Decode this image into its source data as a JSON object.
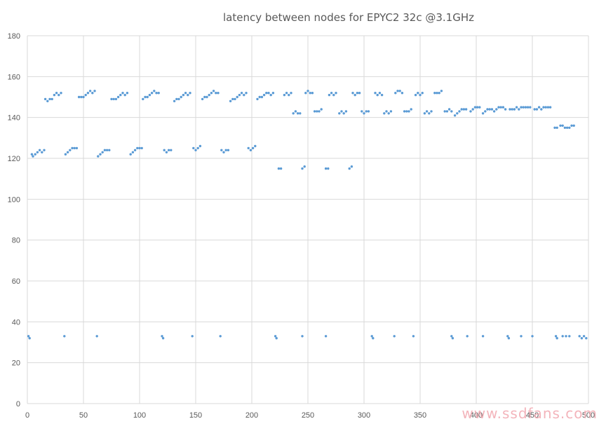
{
  "chart_data": {
    "type": "scatter",
    "title": "latency between nodes for EPYC2 32c @3.1GHz",
    "xlabel": "",
    "ylabel": "",
    "xlim": [
      0,
      500
    ],
    "ylim": [
      0,
      180
    ],
    "xticks": [
      0,
      50,
      100,
      150,
      200,
      250,
      300,
      350,
      400,
      450,
      500
    ],
    "yticks": [
      0,
      20,
      40,
      60,
      80,
      100,
      120,
      140,
      160,
      180
    ],
    "grid": true,
    "legend": "none",
    "marker_color": "#5b9bd5",
    "series": [
      {
        "points": [
          [
            1,
            33
          ],
          [
            2,
            32
          ],
          [
            33,
            33
          ],
          [
            62,
            33
          ],
          [
            120,
            33
          ],
          [
            121,
            32
          ],
          [
            147,
            33
          ],
          [
            172,
            33
          ],
          [
            221,
            33
          ],
          [
            222,
            32
          ],
          [
            245,
            33
          ],
          [
            266,
            33
          ],
          [
            307,
            33
          ],
          [
            308,
            32
          ],
          [
            327,
            33
          ],
          [
            344,
            33
          ],
          [
            378,
            33
          ],
          [
            379,
            32
          ],
          [
            392,
            33
          ],
          [
            406,
            33
          ],
          [
            428,
            33
          ],
          [
            429,
            32
          ],
          [
            440,
            33
          ],
          [
            450,
            33
          ],
          [
            471,
            33
          ],
          [
            472,
            32
          ],
          [
            477,
            33
          ],
          [
            480,
            33
          ],
          [
            483,
            33
          ],
          [
            492,
            33
          ],
          [
            494,
            32
          ],
          [
            496,
            33
          ],
          [
            498,
            32
          ],
          [
            4,
            122
          ],
          [
            5,
            121
          ],
          [
            7,
            122
          ],
          [
            9,
            123
          ],
          [
            11,
            124
          ],
          [
            13,
            123
          ],
          [
            15,
            124
          ],
          [
            34,
            122
          ],
          [
            36,
            123
          ],
          [
            38,
            124
          ],
          [
            40,
            125
          ],
          [
            42,
            125
          ],
          [
            44,
            125
          ],
          [
            63,
            121
          ],
          [
            65,
            122
          ],
          [
            67,
            123
          ],
          [
            69,
            124
          ],
          [
            71,
            124
          ],
          [
            73,
            124
          ],
          [
            92,
            122
          ],
          [
            94,
            123
          ],
          [
            96,
            124
          ],
          [
            98,
            125
          ],
          [
            100,
            125
          ],
          [
            102,
            125
          ],
          [
            122,
            124
          ],
          [
            124,
            123
          ],
          [
            126,
            124
          ],
          [
            128,
            124
          ],
          [
            148,
            125
          ],
          [
            150,
            124
          ],
          [
            152,
            125
          ],
          [
            154,
            126
          ],
          [
            173,
            124
          ],
          [
            175,
            123
          ],
          [
            177,
            124
          ],
          [
            179,
            124
          ],
          [
            197,
            125
          ],
          [
            199,
            124
          ],
          [
            201,
            125
          ],
          [
            203,
            126
          ],
          [
            16,
            149
          ],
          [
            18,
            148
          ],
          [
            20,
            149
          ],
          [
            22,
            149
          ],
          [
            24,
            151
          ],
          [
            26,
            152
          ],
          [
            28,
            151
          ],
          [
            30,
            152
          ],
          [
            46,
            150
          ],
          [
            48,
            150
          ],
          [
            50,
            150
          ],
          [
            52,
            151
          ],
          [
            54,
            152
          ],
          [
            56,
            153
          ],
          [
            58,
            152
          ],
          [
            60,
            153
          ],
          [
            75,
            149
          ],
          [
            77,
            149
          ],
          [
            79,
            149
          ],
          [
            81,
            150
          ],
          [
            83,
            151
          ],
          [
            85,
            152
          ],
          [
            87,
            151
          ],
          [
            89,
            152
          ],
          [
            103,
            149
          ],
          [
            105,
            150
          ],
          [
            107,
            150
          ],
          [
            109,
            151
          ],
          [
            111,
            152
          ],
          [
            113,
            153
          ],
          [
            115,
            152
          ],
          [
            117,
            152
          ],
          [
            131,
            148
          ],
          [
            133,
            149
          ],
          [
            135,
            149
          ],
          [
            137,
            150
          ],
          [
            139,
            151
          ],
          [
            141,
            152
          ],
          [
            143,
            151
          ],
          [
            145,
            152
          ],
          [
            156,
            149
          ],
          [
            158,
            150
          ],
          [
            160,
            150
          ],
          [
            162,
            151
          ],
          [
            164,
            152
          ],
          [
            166,
            153
          ],
          [
            168,
            152
          ],
          [
            170,
            152
          ],
          [
            181,
            148
          ],
          [
            183,
            149
          ],
          [
            185,
            149
          ],
          [
            187,
            150
          ],
          [
            189,
            151
          ],
          [
            191,
            152
          ],
          [
            193,
            151
          ],
          [
            195,
            152
          ],
          [
            205,
            149
          ],
          [
            207,
            150
          ],
          [
            209,
            150
          ],
          [
            211,
            151
          ],
          [
            213,
            152
          ],
          [
            215,
            152
          ],
          [
            217,
            151
          ],
          [
            219,
            152
          ],
          [
            224,
            115
          ],
          [
            226,
            115
          ],
          [
            245,
            115
          ],
          [
            247,
            116
          ],
          [
            266,
            115
          ],
          [
            268,
            115
          ],
          [
            287,
            115
          ],
          [
            289,
            116
          ],
          [
            229,
            151
          ],
          [
            231,
            152
          ],
          [
            233,
            151
          ],
          [
            235,
            152
          ],
          [
            237,
            142
          ],
          [
            239,
            143
          ],
          [
            241,
            142
          ],
          [
            243,
            142
          ],
          [
            248,
            152
          ],
          [
            250,
            153
          ],
          [
            252,
            152
          ],
          [
            254,
            152
          ],
          [
            256,
            143
          ],
          [
            258,
            143
          ],
          [
            260,
            143
          ],
          [
            262,
            144
          ],
          [
            269,
            151
          ],
          [
            271,
            152
          ],
          [
            273,
            151
          ],
          [
            275,
            152
          ],
          [
            278,
            142
          ],
          [
            280,
            143
          ],
          [
            282,
            142
          ],
          [
            284,
            143
          ],
          [
            290,
            152
          ],
          [
            292,
            151
          ],
          [
            294,
            152
          ],
          [
            296,
            152
          ],
          [
            298,
            143
          ],
          [
            300,
            142
          ],
          [
            302,
            143
          ],
          [
            304,
            143
          ],
          [
            310,
            152
          ],
          [
            312,
            151
          ],
          [
            314,
            152
          ],
          [
            316,
            151
          ],
          [
            318,
            142
          ],
          [
            320,
            143
          ],
          [
            322,
            142
          ],
          [
            324,
            143
          ],
          [
            328,
            152
          ],
          [
            330,
            153
          ],
          [
            332,
            153
          ],
          [
            334,
            152
          ],
          [
            336,
            143
          ],
          [
            338,
            143
          ],
          [
            340,
            143
          ],
          [
            342,
            144
          ],
          [
            346,
            151
          ],
          [
            348,
            152
          ],
          [
            350,
            151
          ],
          [
            352,
            152
          ],
          [
            354,
            142
          ],
          [
            356,
            143
          ],
          [
            358,
            142
          ],
          [
            360,
            143
          ],
          [
            363,
            152
          ],
          [
            365,
            152
          ],
          [
            367,
            152
          ],
          [
            369,
            153
          ],
          [
            372,
            143
          ],
          [
            374,
            143
          ],
          [
            376,
            144
          ],
          [
            378,
            143
          ],
          [
            381,
            141
          ],
          [
            383,
            142
          ],
          [
            385,
            143
          ],
          [
            387,
            144
          ],
          [
            389,
            144
          ],
          [
            391,
            144
          ],
          [
            395,
            143
          ],
          [
            397,
            144
          ],
          [
            399,
            145
          ],
          [
            401,
            145
          ],
          [
            403,
            145
          ],
          [
            406,
            142
          ],
          [
            408,
            143
          ],
          [
            410,
            144
          ],
          [
            412,
            144
          ],
          [
            414,
            144
          ],
          [
            416,
            143
          ],
          [
            418,
            144
          ],
          [
            420,
            145
          ],
          [
            422,
            145
          ],
          [
            424,
            145
          ],
          [
            426,
            144
          ],
          [
            430,
            144
          ],
          [
            432,
            144
          ],
          [
            434,
            144
          ],
          [
            436,
            145
          ],
          [
            438,
            144
          ],
          [
            440,
            145
          ],
          [
            442,
            145
          ],
          [
            444,
            145
          ],
          [
            446,
            145
          ],
          [
            448,
            145
          ],
          [
            452,
            144
          ],
          [
            454,
            144
          ],
          [
            456,
            145
          ],
          [
            458,
            144
          ],
          [
            460,
            145
          ],
          [
            462,
            145
          ],
          [
            464,
            145
          ],
          [
            466,
            145
          ],
          [
            470,
            135
          ],
          [
            472,
            135
          ],
          [
            475,
            136
          ],
          [
            477,
            136
          ],
          [
            479,
            135
          ],
          [
            481,
            135
          ],
          [
            483,
            135
          ],
          [
            485,
            136
          ],
          [
            487,
            136
          ]
        ]
      }
    ]
  },
  "watermark": "www.ssdfans.com"
}
